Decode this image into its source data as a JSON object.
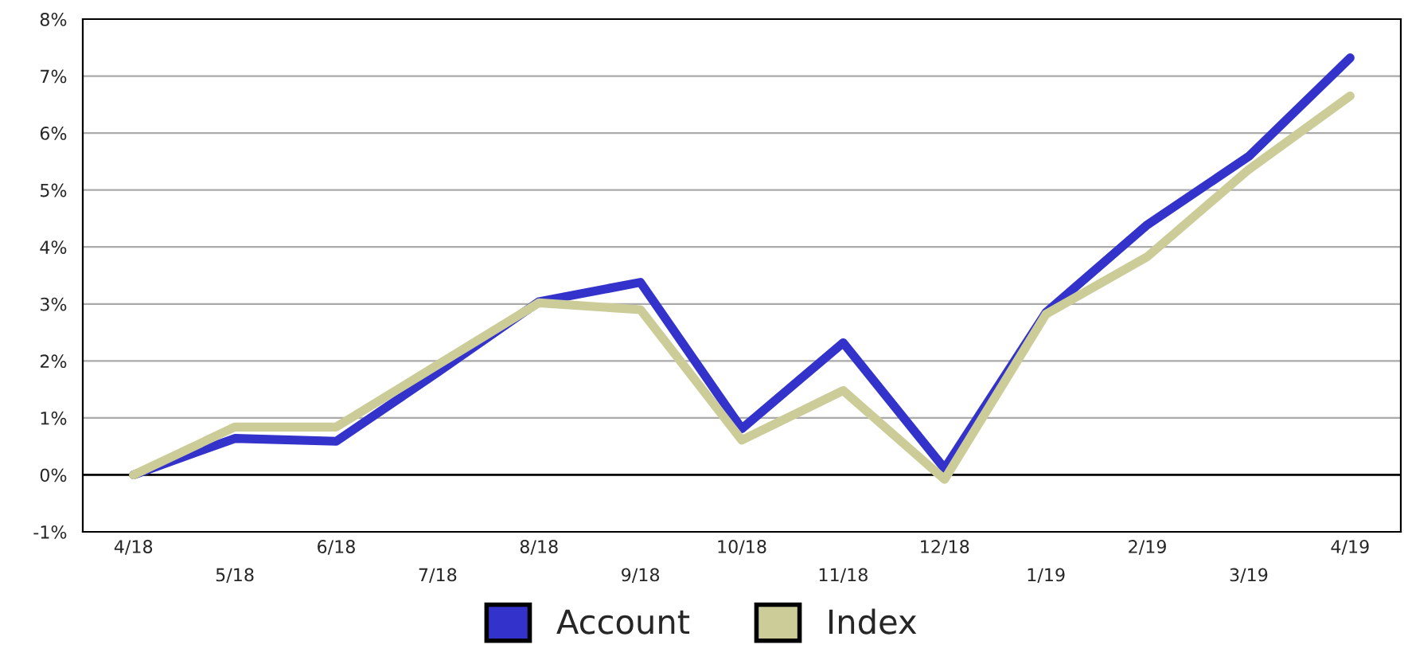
{
  "chart_data": {
    "type": "line",
    "categories": [
      "4/18",
      "5/18",
      "6/18",
      "7/18",
      "8/18",
      "9/18",
      "10/18",
      "11/18",
      "12/18",
      "1/19",
      "2/19",
      "3/19",
      "4/19"
    ],
    "series": [
      {
        "name": "Account",
        "color": "#3333cc",
        "values": [
          0,
          0.64,
          0.59,
          1.8,
          3.04,
          3.38,
          0.81,
          2.32,
          0.11,
          2.85,
          4.39,
          5.59,
          7.32
        ]
      },
      {
        "name": "Index",
        "color": "#cccc99",
        "values": [
          0,
          0.84,
          0.84,
          1.93,
          3.02,
          2.9,
          0.61,
          1.48,
          -0.08,
          2.82,
          3.83,
          5.36,
          6.65
        ]
      }
    ],
    "ylim": [
      -1,
      8
    ],
    "yticks": [
      {
        "value": -1,
        "label": "-1%"
      },
      {
        "value": 0,
        "label": "0%"
      },
      {
        "value": 1,
        "label": "1%"
      },
      {
        "value": 2,
        "label": "2%"
      },
      {
        "value": 3,
        "label": "3%"
      },
      {
        "value": 4,
        "label": "4%"
      },
      {
        "value": 5,
        "label": "5%"
      },
      {
        "value": 6,
        "label": "6%"
      },
      {
        "value": 7,
        "label": "7%"
      },
      {
        "value": 8,
        "label": "8%"
      }
    ],
    "ref_lines": [
      {
        "axis": "y",
        "value": 0,
        "color": "#000000"
      }
    ],
    "grid": "y",
    "legend": "bottom",
    "marker": "none",
    "line_style": "solid"
  }
}
